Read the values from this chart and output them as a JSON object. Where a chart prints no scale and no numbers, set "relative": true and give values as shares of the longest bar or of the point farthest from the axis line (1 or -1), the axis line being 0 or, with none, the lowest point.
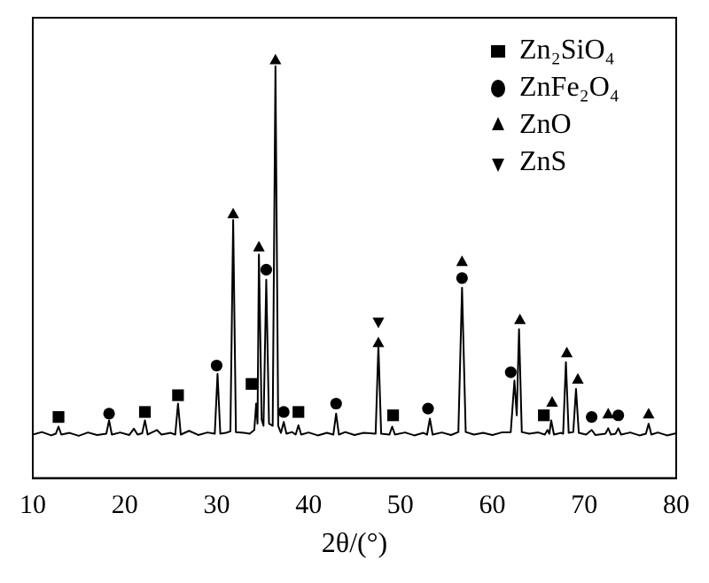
{
  "chart_data": {
    "type": "line",
    "xlabel": "2θ/(°)",
    "xlim": [
      10,
      80
    ],
    "xticks": [
      10,
      20,
      30,
      40,
      50,
      60,
      70,
      80
    ],
    "relative": true,
    "tick_labels": "x",
    "legend": "top right",
    "series": [
      {
        "color": "#000000",
        "marker": "none",
        "line_style": "solid",
        "x": [
          10,
          11,
          12,
          12.5,
          12.8,
          13.1,
          14,
          15,
          16,
          17,
          18.0,
          18.3,
          18.6,
          19.5,
          20.5,
          21,
          21.4,
          21.9,
          22.2,
          22.5,
          23.5,
          24,
          25,
          25.5,
          25.8,
          26.1,
          27,
          28,
          29,
          29.8,
          30.1,
          30.4,
          31.0,
          31.5,
          31.8,
          32.1,
          33,
          33.6,
          34.1,
          34.3,
          34.45,
          34.6,
          34.9,
          35.1,
          35.4,
          35.7,
          36.1,
          36.4,
          36.7,
          37.0,
          37.3,
          37.6,
          38.2,
          38.6,
          38.9,
          39.2,
          40,
          41,
          42,
          42.7,
          43.0,
          43.3,
          44,
          45,
          46,
          47.3,
          47.6,
          47.9,
          48.8,
          49.1,
          49.4,
          50.5,
          51.5,
          52.5,
          52.9,
          53.2,
          53.5,
          54.5,
          55.5,
          56.3,
          56.7,
          57.1,
          58,
          59,
          60,
          61,
          62.0,
          62.4,
          62.65,
          62.9,
          63.2,
          64,
          65,
          65.7,
          66.0,
          66.2,
          66.4,
          66.7,
          67.5,
          67.7,
          68.0,
          68.3,
          68.8,
          69.1,
          69.4,
          70.2,
          70.8,
          71.2,
          72.3,
          72.6,
          72.9,
          73.4,
          73.7,
          74.0,
          75,
          76,
          76.7,
          77.0,
          77.3,
          78,
          79,
          80
        ],
        "values": [
          0.104,
          0.11,
          0.102,
          0.106,
          0.123,
          0.104,
          0.108,
          0.101,
          0.109,
          0.103,
          0.106,
          0.138,
          0.104,
          0.109,
          0.103,
          0.118,
          0.104,
          0.107,
          0.138,
          0.104,
          0.115,
          0.104,
          0.108,
          0.104,
          0.178,
          0.104,
          0.113,
          0.103,
          0.109,
          0.106,
          0.249,
          0.106,
          0.108,
          0.112,
          0.617,
          0.11,
          0.108,
          0.106,
          0.115,
          0.178,
          0.13,
          0.534,
          0.14,
          0.125,
          0.474,
          0.13,
          0.125,
          0.984,
          0.125,
          0.108,
          0.134,
          0.106,
          0.11,
          0.104,
          0.126,
          0.104,
          0.109,
          0.102,
          0.108,
          0.104,
          0.154,
          0.104,
          0.11,
          0.103,
          0.108,
          0.106,
          0.316,
          0.106,
          0.104,
          0.123,
          0.104,
          0.109,
          0.102,
          0.108,
          0.104,
          0.142,
          0.104,
          0.109,
          0.103,
          0.11,
          0.455,
          0.11,
          0.104,
          0.108,
          0.103,
          0.109,
          0.11,
          0.233,
          0.15,
          0.356,
          0.11,
          0.106,
          0.109,
          0.104,
          0.115,
          0.106,
          0.138,
          0.104,
          0.108,
          0.106,
          0.277,
          0.108,
          0.11,
          0.213,
          0.108,
          0.104,
          0.115,
          0.103,
          0.106,
          0.119,
          0.104,
          0.106,
          0.119,
          0.104,
          0.109,
          0.102,
          0.106,
          0.13,
          0.104,
          0.109,
          0.102,
          0.107
        ]
      },
      {
        "type": "scatter",
        "name": "Zn₂SiO₄",
        "color": "#000000",
        "marker": "square",
        "x": [
          12.8,
          22.2,
          25.8,
          33.8,
          38.9,
          49.2,
          65.6
        ],
        "values": [
          0.146,
          0.158,
          0.198,
          0.225,
          0.158,
          0.15,
          0.15
        ]
      },
      {
        "type": "scatter",
        "name": "ZnFe₂O₄",
        "color": "#000000",
        "marker": "circle",
        "x": [
          18.3,
          30.0,
          35.4,
          37.3,
          43.0,
          53.0,
          56.7,
          62.0,
          70.8,
          73.7
        ],
        "values": [
          0.154,
          0.269,
          0.498,
          0.158,
          0.178,
          0.166,
          0.478,
          0.253,
          0.146,
          0.15
        ]
      },
      {
        "type": "scatter",
        "name": "ZnO",
        "color": "#000000",
        "marker": "triangle",
        "x": [
          31.8,
          34.6,
          36.4,
          47.6,
          56.7,
          63.0,
          66.5,
          68.1,
          69.3,
          72.6,
          77.0
        ],
        "values": [
          0.632,
          0.553,
          1,
          0.324,
          0.518,
          0.379,
          0.182,
          0.3,
          0.237,
          0.154,
          0.154
        ]
      },
      {
        "type": "scatter",
        "name": "ZnS",
        "color": "#000000",
        "marker": "triangle-down",
        "x": [
          47.6
        ],
        "values": [
          0.372
        ]
      }
    ]
  }
}
